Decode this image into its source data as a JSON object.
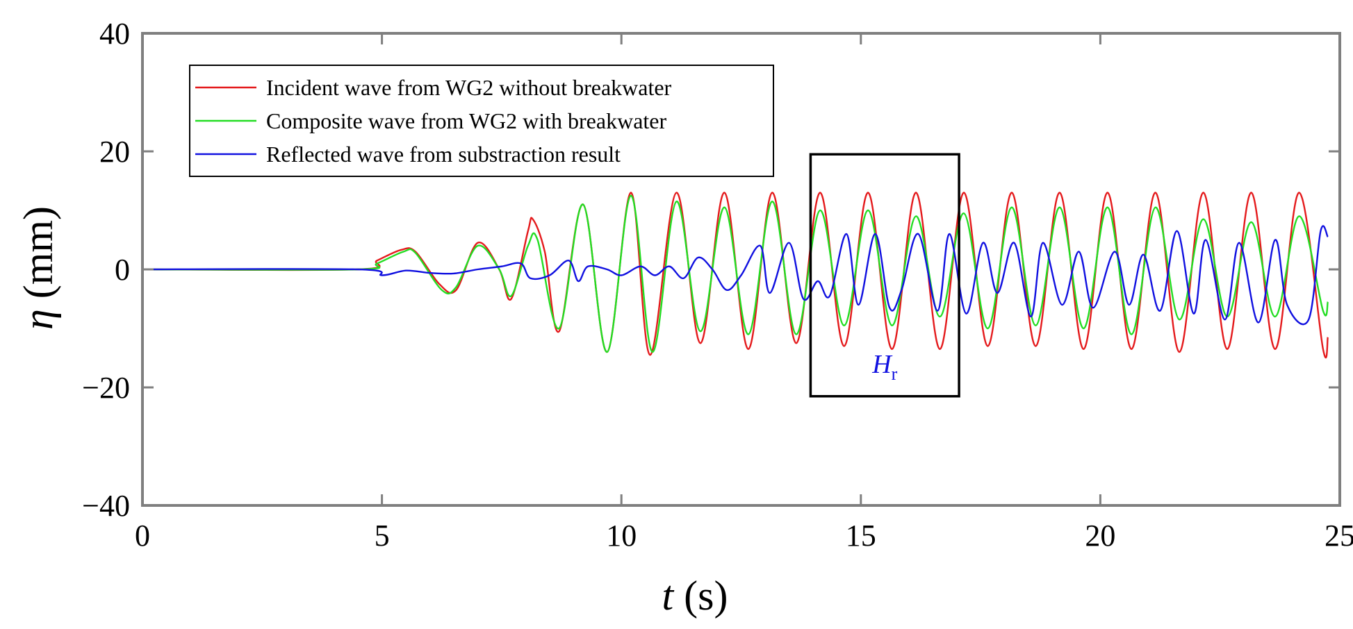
{
  "chart_data": {
    "type": "line",
    "title": "",
    "xlabel_symbol": "t",
    "xlabel_unit": " (s)",
    "ylabel_symbol": "η",
    "ylabel_unit": " (mm)",
    "xlim": [
      0,
      25
    ],
    "ylim": [
      -40,
      40
    ],
    "xticks": [
      0,
      5,
      10,
      15,
      20,
      25
    ],
    "xtick_labels": [
      "0",
      "5",
      "10",
      "15",
      "20",
      "25"
    ],
    "yticks": [
      -40,
      -20,
      0,
      20,
      40
    ],
    "ytick_labels": [
      "−40",
      "−20",
      "0",
      "20",
      "40"
    ],
    "grid": false,
    "legend_position": "top-left",
    "series": [
      {
        "name": "Incident wave from WG2 without breakwater",
        "color": "#e41a1c",
        "x": [
          0,
          4.5,
          4.9,
          5.4,
          5.7,
          6.2,
          6.55,
          7.0,
          7.45,
          7.7,
          8.05,
          8.15,
          8.4,
          8.7,
          9.2,
          9.7,
          10.2,
          10.6,
          11.15,
          11.65,
          12.15,
          12.65,
          13.15,
          13.65,
          14.15,
          14.65,
          15.15,
          15.65,
          16.15,
          16.65,
          17.15,
          17.65,
          18.15,
          18.65,
          19.15,
          19.65,
          20.15,
          20.65,
          21.15,
          21.65,
          22.15,
          22.65,
          23.15,
          23.65,
          24.15,
          24.65,
          24.75
        ],
        "y": [
          0,
          0,
          1.5,
          3.3,
          3.0,
          -2.5,
          -3.5,
          4.5,
          0,
          -5.0,
          6.5,
          8.5,
          3.0,
          -10.5,
          11.0,
          -14.0,
          13.0,
          -14.5,
          13.0,
          -12.5,
          13.0,
          -13.5,
          13.0,
          -12.5,
          13.0,
          -13.0,
          13.0,
          -13.5,
          13.0,
          -13.5,
          13.0,
          -13.0,
          13.0,
          -13.0,
          13.0,
          -13.5,
          13.0,
          -13.5,
          13.0,
          -14.0,
          13.0,
          -13.5,
          13.0,
          -13.5,
          13.0,
          -13.5,
          -11.5
        ]
      },
      {
        "name": "Composite wave from WG2 with breakwater",
        "color": "#22dd22",
        "x": [
          0,
          4.5,
          4.9,
          5.45,
          5.7,
          6.25,
          6.55,
          7.0,
          7.45,
          7.7,
          8.05,
          8.25,
          8.7,
          9.2,
          9.7,
          10.2,
          10.65,
          11.15,
          11.65,
          12.15,
          12.65,
          13.15,
          13.65,
          14.15,
          14.65,
          15.15,
          15.65,
          16.15,
          16.65,
          17.15,
          17.65,
          18.15,
          18.65,
          19.15,
          19.65,
          20.15,
          20.65,
          21.15,
          21.65,
          22.15,
          22.65,
          23.15,
          23.65,
          24.15,
          24.65,
          24.75
        ],
        "y": [
          0,
          0,
          1.0,
          3.0,
          2.8,
          -3.5,
          -3.0,
          4.0,
          0,
          -4.5,
          4.0,
          5.0,
          -10.0,
          11.0,
          -14.0,
          12.5,
          -14.0,
          11.5,
          -10.5,
          10.5,
          -11.0,
          11.5,
          -11.0,
          10.0,
          -9.5,
          10.0,
          -9.5,
          9.0,
          -8.0,
          9.5,
          -10.0,
          10.5,
          -9.5,
          10.5,
          -10.0,
          10.5,
          -11.0,
          10.5,
          -8.5,
          8.5,
          -8.0,
          8.0,
          -8.0,
          9.0,
          -7.0,
          -5.5
        ]
      },
      {
        "name": "Reflected wave from substraction result",
        "color": "#1010e0",
        "x": [
          0,
          4.5,
          5.0,
          5.5,
          6.0,
          6.5,
          7.0,
          7.5,
          7.9,
          8.1,
          8.5,
          8.9,
          9.1,
          9.3,
          9.7,
          10.0,
          10.4,
          10.7,
          11.0,
          11.3,
          11.6,
          11.9,
          12.2,
          12.5,
          12.9,
          13.1,
          13.5,
          13.8,
          14.1,
          14.35,
          14.7,
          14.95,
          15.3,
          15.6,
          15.85,
          16.2,
          16.6,
          16.85,
          17.2,
          17.55,
          17.85,
          18.2,
          18.55,
          18.8,
          19.2,
          19.55,
          19.85,
          20.3,
          20.6,
          20.9,
          21.25,
          21.6,
          21.95,
          22.2,
          22.6,
          22.9,
          23.3,
          23.65,
          23.9,
          24.35,
          24.6,
          24.75
        ],
        "y": [
          0,
          0,
          -1.0,
          -0.2,
          -0.6,
          -0.7,
          0,
          0.5,
          1.0,
          -1.5,
          -1.0,
          1.5,
          -2.0,
          0.5,
          0,
          -1.0,
          0.5,
          -1.0,
          0.5,
          -1.5,
          2.0,
          0,
          -3.5,
          -1.0,
          4.0,
          -4.0,
          4.5,
          -5.0,
          -2.0,
          -4.5,
          6.0,
          -6.0,
          6.0,
          -6.5,
          -3.5,
          6.0,
          -7.0,
          6.0,
          -7.5,
          4.5,
          -4.0,
          4.5,
          -8.0,
          4.5,
          -6.0,
          3.0,
          -6.5,
          3.0,
          -6.0,
          2.5,
          -7.0,
          6.5,
          -7.5,
          5.0,
          -8.5,
          4.5,
          -9.0,
          5.0,
          -6.0,
          -8.5,
          6.5,
          5.5
        ]
      }
    ],
    "annotations": [
      {
        "type": "box",
        "x_range": [
          13.95,
          17.05
        ],
        "y_range": [
          -21.5,
          19.5
        ],
        "label_main": "H",
        "label_sub": "r",
        "label_color": "#1010e0"
      }
    ]
  }
}
